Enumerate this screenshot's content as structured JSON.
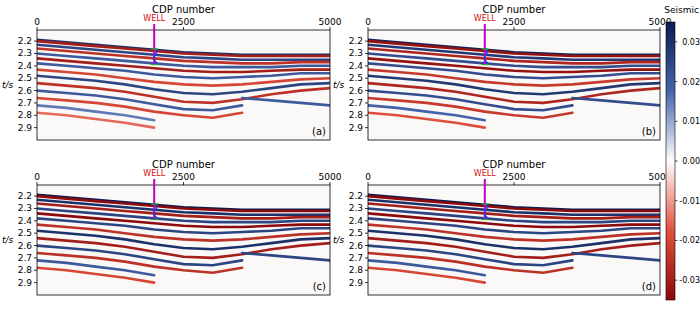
{
  "chart_data": [
    {
      "type": "seismic",
      "label": "(a)",
      "x_label": "CDP number",
      "y_label": "t/s",
      "xlim": [
        0,
        5000
      ],
      "xticks": [
        0,
        2500,
        5000
      ],
      "ylim": [
        2.11,
        3.0
      ],
      "yticks": [
        2.2,
        2.3,
        2.4,
        2.5,
        2.6,
        2.7,
        2.8,
        2.9
      ],
      "well": {
        "label": "WELL",
        "x": 2000,
        "t_end": 2.39
      },
      "x": [
        0,
        500,
        1000,
        1500,
        2000,
        2500,
        3000,
        3500,
        4000,
        4500,
        5000
      ],
      "series": [
        {
          "amplitude": 0.03,
          "values": [
            2.19,
            2.21,
            2.23,
            2.25,
            2.27,
            2.29,
            2.3,
            2.31,
            2.31,
            2.31,
            2.31
          ]
        },
        {
          "amplitude": -0.03,
          "values": [
            2.2,
            2.22,
            2.24,
            2.26,
            2.28,
            2.3,
            2.31,
            2.32,
            2.32,
            2.32,
            2.32
          ]
        },
        {
          "amplitude": 0.025,
          "values": [
            2.23,
            2.25,
            2.27,
            2.29,
            2.31,
            2.33,
            2.34,
            2.35,
            2.35,
            2.35,
            2.35
          ]
        },
        {
          "amplitude": -0.025,
          "values": [
            2.26,
            2.28,
            2.3,
            2.32,
            2.34,
            2.36,
            2.37,
            2.38,
            2.38,
            2.37,
            2.37
          ]
        },
        {
          "amplitude": 0.02,
          "values": [
            2.3,
            2.32,
            2.34,
            2.36,
            2.38,
            2.4,
            2.41,
            2.41,
            2.41,
            2.4,
            2.4
          ]
        },
        {
          "amplitude": -0.03,
          "values": [
            2.34,
            2.36,
            2.38,
            2.4,
            2.42,
            2.44,
            2.45,
            2.45,
            2.44,
            2.43,
            2.43
          ]
        },
        {
          "amplitude": 0.02,
          "values": [
            2.38,
            2.4,
            2.42,
            2.44,
            2.47,
            2.49,
            2.5,
            2.49,
            2.48,
            2.46,
            2.46
          ]
        },
        {
          "amplitude": -0.02,
          "values": [
            2.43,
            2.45,
            2.47,
            2.5,
            2.53,
            2.55,
            2.56,
            2.55,
            2.53,
            2.51,
            2.5
          ]
        },
        {
          "amplitude": 0.025,
          "values": [
            2.48,
            2.5,
            2.52,
            2.55,
            2.59,
            2.62,
            2.63,
            2.61,
            2.58,
            2.55,
            2.54
          ]
        },
        {
          "amplitude": -0.025,
          "values": [
            2.54,
            2.56,
            2.58,
            2.61,
            2.65,
            2.69,
            2.7,
            2.67,
            2.63,
            2.6,
            2.58
          ]
        },
        {
          "amplitude": 0.02,
          "values": [
            2.6,
            2.62,
            2.64,
            2.67,
            2.71,
            2.75,
            2.76,
            2.72,
            null,
            null,
            null
          ]
        },
        {
          "amplitude": -0.02,
          "values": [
            2.66,
            2.68,
            2.7,
            2.73,
            2.77,
            2.8,
            2.82,
            2.78,
            null,
            null,
            null
          ]
        },
        {
          "amplitude": 0.015,
          "values": [
            2.72,
            2.74,
            2.77,
            2.8,
            2.84,
            null,
            null,
            null,
            null,
            null,
            null
          ]
        },
        {
          "amplitude": -0.015,
          "values": [
            2.78,
            2.8,
            2.83,
            2.86,
            2.9,
            null,
            null,
            null,
            null,
            null,
            null
          ]
        },
        {
          "amplitude": 0.02,
          "values": [
            null,
            null,
            null,
            null,
            null,
            null,
            null,
            2.66,
            2.68,
            2.7,
            2.72
          ]
        }
      ]
    },
    {
      "type": "seismic",
      "label": "(b)",
      "x_label": "CDP number",
      "y_label": "t/s",
      "xlim": [
        0,
        5000
      ],
      "xticks": [
        0,
        2500,
        5000
      ],
      "ylim": [
        2.11,
        3.0
      ],
      "yticks": [
        2.2,
        2.3,
        2.4,
        2.5,
        2.6,
        2.7,
        2.8,
        2.9
      ],
      "well": {
        "label": "WELL",
        "x": 2000,
        "t_end": 2.39
      },
      "x": [
        0,
        500,
        1000,
        1500,
        2000,
        2500,
        3000,
        3500,
        4000,
        4500,
        5000
      ],
      "series": [
        {
          "amplitude": 0.033,
          "values": [
            2.19,
            2.21,
            2.23,
            2.25,
            2.27,
            2.29,
            2.3,
            2.31,
            2.31,
            2.31,
            2.31
          ]
        },
        {
          "amplitude": -0.033,
          "values": [
            2.2,
            2.22,
            2.24,
            2.26,
            2.28,
            2.3,
            2.31,
            2.32,
            2.32,
            2.32,
            2.32
          ]
        },
        {
          "amplitude": 0.028,
          "values": [
            2.23,
            2.25,
            2.27,
            2.29,
            2.31,
            2.33,
            2.34,
            2.35,
            2.35,
            2.35,
            2.35
          ]
        },
        {
          "amplitude": -0.028,
          "values": [
            2.26,
            2.28,
            2.3,
            2.32,
            2.34,
            2.36,
            2.37,
            2.38,
            2.38,
            2.37,
            2.37
          ]
        },
        {
          "amplitude": 0.023,
          "values": [
            2.3,
            2.32,
            2.34,
            2.36,
            2.38,
            2.4,
            2.41,
            2.41,
            2.41,
            2.4,
            2.4
          ]
        },
        {
          "amplitude": -0.033,
          "values": [
            2.34,
            2.36,
            2.38,
            2.4,
            2.42,
            2.44,
            2.45,
            2.45,
            2.44,
            2.43,
            2.43
          ]
        },
        {
          "amplitude": 0.023,
          "values": [
            2.38,
            2.4,
            2.42,
            2.44,
            2.47,
            2.49,
            2.5,
            2.49,
            2.48,
            2.46,
            2.46
          ]
        },
        {
          "amplitude": -0.023,
          "values": [
            2.43,
            2.45,
            2.47,
            2.5,
            2.53,
            2.55,
            2.56,
            2.55,
            2.53,
            2.51,
            2.5
          ]
        },
        {
          "amplitude": 0.028,
          "values": [
            2.48,
            2.5,
            2.52,
            2.55,
            2.59,
            2.62,
            2.63,
            2.61,
            2.58,
            2.55,
            2.54
          ]
        },
        {
          "amplitude": -0.028,
          "values": [
            2.54,
            2.56,
            2.58,
            2.61,
            2.65,
            2.69,
            2.7,
            2.67,
            2.63,
            2.6,
            2.58
          ]
        },
        {
          "amplitude": 0.023,
          "values": [
            2.6,
            2.62,
            2.64,
            2.67,
            2.71,
            2.75,
            2.76,
            2.72,
            null,
            null,
            null
          ]
        },
        {
          "amplitude": -0.023,
          "values": [
            2.66,
            2.68,
            2.7,
            2.73,
            2.77,
            2.8,
            2.82,
            2.78,
            null,
            null,
            null
          ]
        },
        {
          "amplitude": 0.018,
          "values": [
            2.72,
            2.74,
            2.77,
            2.8,
            2.84,
            null,
            null,
            null,
            null,
            null,
            null
          ]
        },
        {
          "amplitude": -0.018,
          "values": [
            2.78,
            2.8,
            2.83,
            2.86,
            2.9,
            null,
            null,
            null,
            null,
            null,
            null
          ]
        },
        {
          "amplitude": 0.023,
          "values": [
            null,
            null,
            null,
            null,
            null,
            null,
            null,
            2.66,
            2.68,
            2.7,
            2.72
          ]
        }
      ]
    },
    {
      "type": "seismic",
      "label": "(c)",
      "x_label": "CDP number",
      "y_label": "t/s",
      "xlim": [
        0,
        5000
      ],
      "xticks": [
        0,
        2500,
        5000
      ],
      "ylim": [
        2.11,
        3.0
      ],
      "yticks": [
        2.2,
        2.3,
        2.4,
        2.5,
        2.6,
        2.7,
        2.8,
        2.9
      ],
      "well": {
        "label": "WELL",
        "x": 2000,
        "t_end": 2.39
      },
      "x": [
        0,
        500,
        1000,
        1500,
        2000,
        2500,
        3000,
        3500,
        4000,
        4500,
        5000
      ],
      "series": [
        {
          "amplitude": 0.035,
          "values": [
            2.19,
            2.21,
            2.23,
            2.25,
            2.27,
            2.29,
            2.3,
            2.31,
            2.31,
            2.31,
            2.31
          ]
        },
        {
          "amplitude": -0.035,
          "values": [
            2.2,
            2.22,
            2.24,
            2.26,
            2.28,
            2.3,
            2.31,
            2.32,
            2.32,
            2.32,
            2.32
          ]
        },
        {
          "amplitude": 0.03,
          "values": [
            2.23,
            2.25,
            2.27,
            2.29,
            2.31,
            2.33,
            2.34,
            2.35,
            2.35,
            2.35,
            2.35
          ]
        },
        {
          "amplitude": -0.03,
          "values": [
            2.26,
            2.28,
            2.3,
            2.32,
            2.34,
            2.36,
            2.37,
            2.38,
            2.38,
            2.37,
            2.37
          ]
        },
        {
          "amplitude": 0.025,
          "values": [
            2.3,
            2.32,
            2.34,
            2.36,
            2.38,
            2.4,
            2.41,
            2.41,
            2.41,
            2.4,
            2.4
          ]
        },
        {
          "amplitude": -0.035,
          "values": [
            2.34,
            2.36,
            2.38,
            2.4,
            2.42,
            2.44,
            2.45,
            2.45,
            2.44,
            2.43,
            2.43
          ]
        },
        {
          "amplitude": 0.025,
          "values": [
            2.38,
            2.4,
            2.42,
            2.44,
            2.47,
            2.49,
            2.5,
            2.49,
            2.48,
            2.46,
            2.46
          ]
        },
        {
          "amplitude": -0.025,
          "values": [
            2.43,
            2.45,
            2.47,
            2.5,
            2.53,
            2.55,
            2.56,
            2.55,
            2.53,
            2.51,
            2.5
          ]
        },
        {
          "amplitude": 0.03,
          "values": [
            2.48,
            2.5,
            2.52,
            2.55,
            2.59,
            2.62,
            2.63,
            2.61,
            2.58,
            2.55,
            2.54
          ]
        },
        {
          "amplitude": -0.03,
          "values": [
            2.54,
            2.56,
            2.58,
            2.61,
            2.65,
            2.69,
            2.7,
            2.67,
            2.63,
            2.6,
            2.58
          ]
        },
        {
          "amplitude": 0.025,
          "values": [
            2.6,
            2.62,
            2.64,
            2.67,
            2.71,
            2.75,
            2.76,
            2.72,
            null,
            null,
            null
          ]
        },
        {
          "amplitude": -0.025,
          "values": [
            2.66,
            2.68,
            2.7,
            2.73,
            2.77,
            2.8,
            2.82,
            2.78,
            null,
            null,
            null
          ]
        },
        {
          "amplitude": 0.02,
          "values": [
            2.72,
            2.74,
            2.77,
            2.8,
            2.84,
            null,
            null,
            null,
            null,
            null,
            null
          ]
        },
        {
          "amplitude": -0.02,
          "values": [
            2.78,
            2.8,
            2.83,
            2.86,
            2.9,
            null,
            null,
            null,
            null,
            null,
            null
          ]
        },
        {
          "amplitude": 0.025,
          "values": [
            null,
            null,
            null,
            null,
            null,
            null,
            null,
            2.66,
            2.68,
            2.7,
            2.72
          ]
        }
      ]
    },
    {
      "type": "seismic",
      "label": "(d)",
      "x_label": "CDP number",
      "y_label": "t/s",
      "xlim": [
        0,
        5000
      ],
      "xticks": [
        0,
        2500,
        5000
      ],
      "ylim": [
        2.11,
        3.0
      ],
      "yticks": [
        2.2,
        2.3,
        2.4,
        2.5,
        2.6,
        2.7,
        2.8,
        2.9
      ],
      "well": {
        "label": "WELL",
        "x": 2000,
        "t_end": 2.39
      },
      "x": [
        0,
        500,
        1000,
        1500,
        2000,
        2500,
        3000,
        3500,
        4000,
        4500,
        5000
      ],
      "series": [
        {
          "amplitude": 0.035,
          "values": [
            2.19,
            2.21,
            2.23,
            2.25,
            2.27,
            2.29,
            2.3,
            2.31,
            2.31,
            2.31,
            2.31
          ]
        },
        {
          "amplitude": -0.035,
          "values": [
            2.2,
            2.22,
            2.24,
            2.26,
            2.28,
            2.3,
            2.31,
            2.32,
            2.32,
            2.32,
            2.32
          ]
        },
        {
          "amplitude": 0.03,
          "values": [
            2.23,
            2.25,
            2.27,
            2.29,
            2.31,
            2.33,
            2.34,
            2.35,
            2.35,
            2.35,
            2.35
          ]
        },
        {
          "amplitude": -0.03,
          "values": [
            2.26,
            2.28,
            2.3,
            2.32,
            2.34,
            2.36,
            2.37,
            2.38,
            2.38,
            2.37,
            2.37
          ]
        },
        {
          "amplitude": 0.025,
          "values": [
            2.3,
            2.32,
            2.34,
            2.36,
            2.38,
            2.4,
            2.41,
            2.41,
            2.41,
            2.4,
            2.4
          ]
        },
        {
          "amplitude": -0.035,
          "values": [
            2.34,
            2.36,
            2.38,
            2.4,
            2.42,
            2.44,
            2.45,
            2.45,
            2.44,
            2.43,
            2.43
          ]
        },
        {
          "amplitude": 0.025,
          "values": [
            2.38,
            2.4,
            2.42,
            2.44,
            2.47,
            2.49,
            2.5,
            2.49,
            2.48,
            2.46,
            2.46
          ]
        },
        {
          "amplitude": -0.025,
          "values": [
            2.43,
            2.45,
            2.47,
            2.5,
            2.53,
            2.55,
            2.56,
            2.55,
            2.53,
            2.51,
            2.5
          ]
        },
        {
          "amplitude": 0.03,
          "values": [
            2.48,
            2.5,
            2.52,
            2.55,
            2.59,
            2.62,
            2.63,
            2.61,
            2.58,
            2.55,
            2.54
          ]
        },
        {
          "amplitude": -0.03,
          "values": [
            2.54,
            2.56,
            2.58,
            2.61,
            2.65,
            2.69,
            2.7,
            2.67,
            2.63,
            2.6,
            2.58
          ]
        },
        {
          "amplitude": 0.025,
          "values": [
            2.6,
            2.62,
            2.64,
            2.67,
            2.71,
            2.75,
            2.76,
            2.72,
            null,
            null,
            null
          ]
        },
        {
          "amplitude": -0.025,
          "values": [
            2.66,
            2.68,
            2.7,
            2.73,
            2.77,
            2.8,
            2.82,
            2.78,
            null,
            null,
            null
          ]
        },
        {
          "amplitude": 0.02,
          "values": [
            2.72,
            2.74,
            2.77,
            2.8,
            2.84,
            null,
            null,
            null,
            null,
            null,
            null
          ]
        },
        {
          "amplitude": -0.02,
          "values": [
            2.78,
            2.8,
            2.83,
            2.86,
            2.9,
            null,
            null,
            null,
            null,
            null,
            null
          ]
        },
        {
          "amplitude": 0.025,
          "values": [
            null,
            null,
            null,
            null,
            null,
            null,
            null,
            2.66,
            2.68,
            2.7,
            2.72
          ]
        }
      ]
    }
  ],
  "colorbar": {
    "label": "Seismic",
    "range": [
      -0.035,
      0.035
    ],
    "ticks": [
      0.03,
      0.02,
      0.01,
      {
        "value": 0,
        "label": "0.00"
      },
      -0.01,
      -0.02,
      -0.03
    ]
  }
}
